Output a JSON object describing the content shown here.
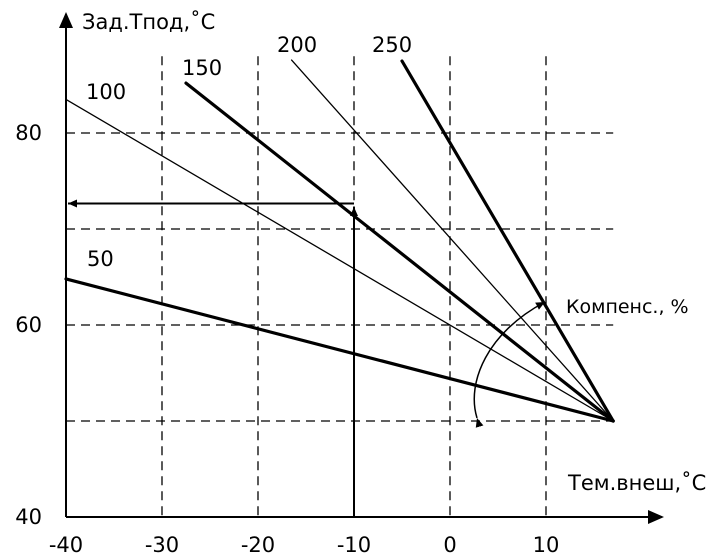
{
  "chart_data": {
    "type": "line",
    "title": "",
    "xlabel": "Тем.внеш,˚C",
    "ylabel": "Зад.Тпод,˚C",
    "xlim": [
      -40,
      17
    ],
    "ylim": [
      40,
      88
    ],
    "grid": true,
    "grid_style": "dashed",
    "x_ticks": [
      -40,
      -30,
      -20,
      -10,
      0,
      10
    ],
    "x_tick_labels": [
      "-40",
      "-30",
      "-20",
      "-10",
      "0",
      "10"
    ],
    "y_ticks": [
      40,
      60,
      80
    ],
    "y_tick_labels": [
      "40",
      "60",
      "80"
    ],
    "y_grid_lines": [
      50,
      60,
      70,
      80
    ],
    "pivot": {
      "x": 17,
      "y": 50
    },
    "series": [
      {
        "name": "50",
        "heavy": true,
        "x": [
          -40,
          17
        ],
        "y": [
          64.8,
          50
        ]
      },
      {
        "name": "100",
        "heavy": false,
        "x": [
          -40,
          17
        ],
        "y": [
          83.5,
          50
        ]
      },
      {
        "name": "150",
        "heavy": true,
        "x": [
          -27.5,
          17
        ],
        "y": [
          85.2,
          50
        ]
      },
      {
        "name": "200",
        "heavy": false,
        "x": [
          -16.5,
          17
        ],
        "y": [
          87.6,
          50
        ]
      },
      {
        "name": "250",
        "heavy": true,
        "x": [
          -5,
          17
        ],
        "y": [
          87.5,
          50
        ]
      }
    ],
    "example_lookup": {
      "x": -10,
      "y": 72.5
    },
    "annotation": "Компенс., %"
  }
}
